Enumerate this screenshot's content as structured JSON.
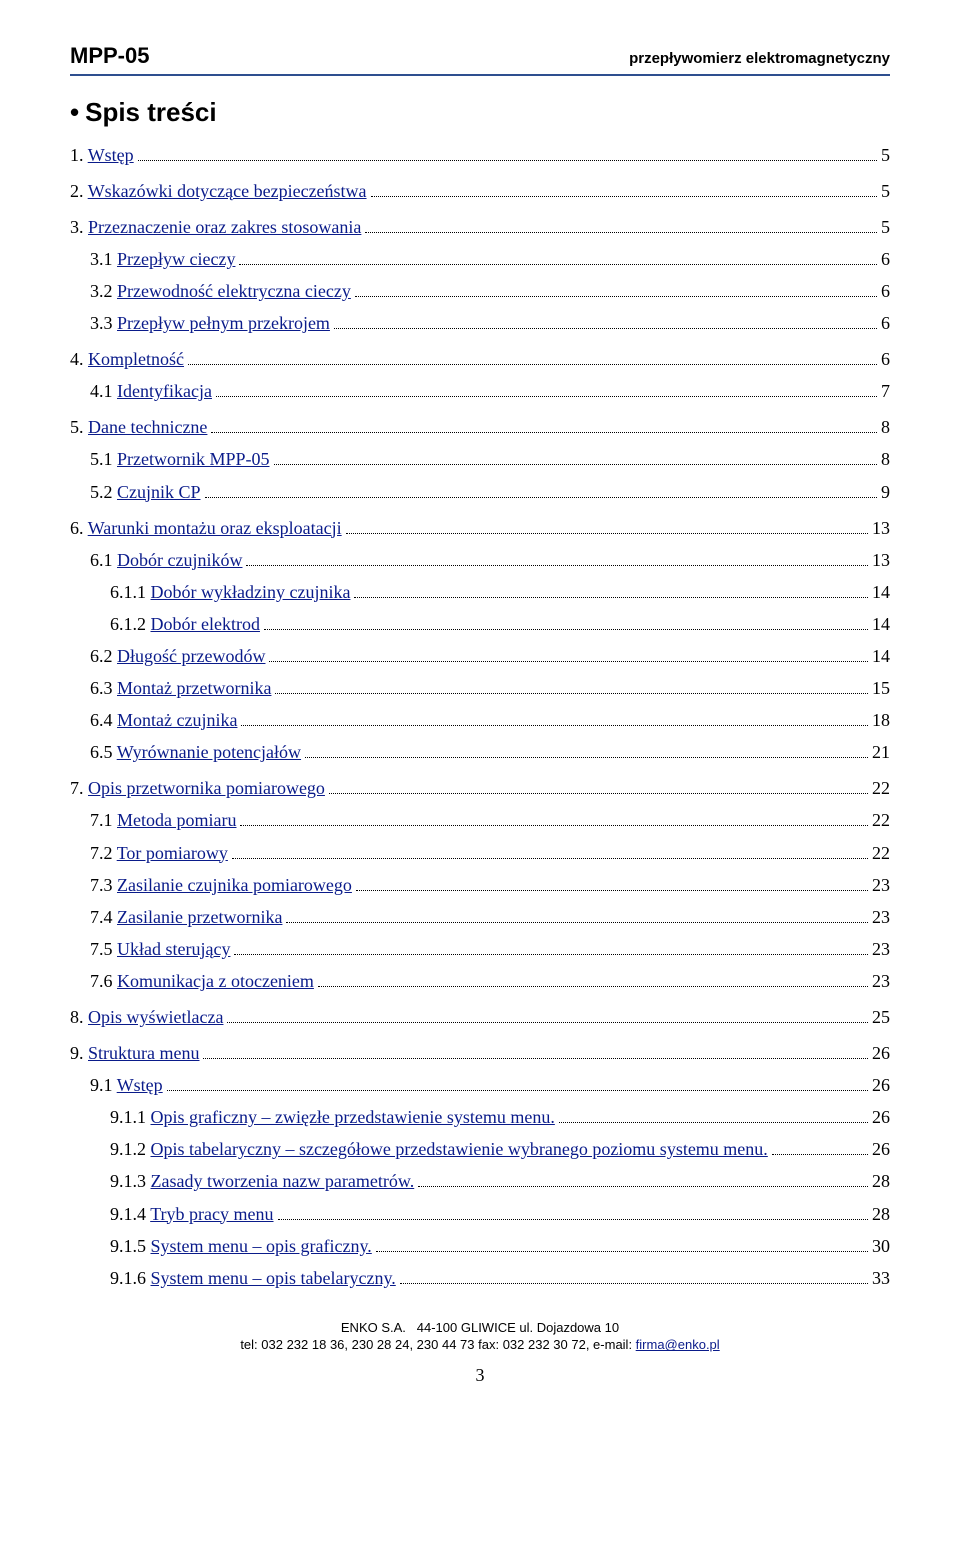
{
  "header": {
    "code": "MPP-05",
    "subtitle": "przepływomierz elektromagnetyczny"
  },
  "toc_heading": "Spis treści",
  "toc": [
    {
      "lvl": 1,
      "num": "1.",
      "txt": "Wstęp",
      "pg": "5",
      "link": true
    },
    {
      "lvl": 1,
      "num": "2.",
      "txt": "Wskazówki dotyczące bezpieczeństwa",
      "pg": "5",
      "link": true
    },
    {
      "lvl": 1,
      "num": "3.",
      "txt": "Przeznaczenie oraz zakres stosowania",
      "pg": "5",
      "link": true
    },
    {
      "lvl": 2,
      "num": "3.1",
      "txt": "Przepływ cieczy",
      "pg": "6",
      "link": true
    },
    {
      "lvl": 2,
      "num": "3.2",
      "txt": "Przewodność elektryczna cieczy",
      "pg": "6",
      "link": true
    },
    {
      "lvl": 2,
      "num": "3.3",
      "txt": "Przepływ pełnym przekrojem",
      "pg": "6",
      "link": true
    },
    {
      "lvl": 1,
      "num": "4.",
      "txt": "Kompletność",
      "pg": "6",
      "link": true
    },
    {
      "lvl": 2,
      "num": "4.1",
      "txt": "Identyfikacja",
      "pg": "7",
      "link": true
    },
    {
      "lvl": 1,
      "num": "5.",
      "txt": "Dane techniczne",
      "pg": "8",
      "link": true
    },
    {
      "lvl": 2,
      "num": "5.1",
      "txt": "Przetwornik  MPP-05",
      "pg": "8",
      "link": true
    },
    {
      "lvl": 2,
      "num": "5.2",
      "txt": "Czujnik  CP",
      "pg": "9",
      "link": true
    },
    {
      "lvl": 1,
      "num": "6.",
      "txt": "Warunki montażu oraz eksploatacji",
      "pg": "13",
      "link": true
    },
    {
      "lvl": 2,
      "num": "6.1",
      "txt": "Dobór czujników",
      "pg": "13",
      "link": true
    },
    {
      "lvl": 3,
      "num": "6.1.1",
      "txt": "Dobór wykładziny czujnika",
      "pg": "14",
      "link": true
    },
    {
      "lvl": 3,
      "num": "6.1.2",
      "txt": "Dobór elektrod",
      "pg": "14",
      "link": true
    },
    {
      "lvl": 2,
      "num": "6.2",
      "txt": "Długość przewodów",
      "pg": "14",
      "link": true
    },
    {
      "lvl": 2,
      "num": "6.3",
      "txt": "Montaż przetwornika",
      "pg": "15",
      "link": true
    },
    {
      "lvl": 2,
      "num": "6.4",
      "txt": "Montaż czujnika",
      "pg": "18",
      "link": true
    },
    {
      "lvl": 2,
      "num": "6.5",
      "txt": "Wyrównanie potencjałów",
      "pg": "21",
      "link": true
    },
    {
      "lvl": 1,
      "num": "7.",
      "txt": "Opis przetwornika pomiarowego",
      "pg": "22",
      "link": true
    },
    {
      "lvl": 2,
      "num": "7.1",
      "txt": "Metoda pomiaru",
      "pg": "22",
      "link": true
    },
    {
      "lvl": 2,
      "num": "7.2",
      "txt": "Tor pomiarowy",
      "pg": "22",
      "link": true
    },
    {
      "lvl": 2,
      "num": "7.3",
      "txt": "Zasilanie czujnika pomiarowego",
      "pg": "23",
      "link": true
    },
    {
      "lvl": 2,
      "num": "7.4",
      "txt": "Zasilanie przetwornika",
      "pg": "23",
      "link": true
    },
    {
      "lvl": 2,
      "num": "7.5",
      "txt": "Układ sterujący",
      "pg": "23",
      "link": true
    },
    {
      "lvl": 2,
      "num": "7.6",
      "txt": "Komunikacja z otoczeniem",
      "pg": "23",
      "link": true
    },
    {
      "lvl": 1,
      "num": "8.",
      "txt": "Opis wyświetlacza",
      "pg": "25",
      "link": true
    },
    {
      "lvl": 1,
      "num": "9.",
      "txt": "Struktura menu",
      "pg": "26",
      "link": true
    },
    {
      "lvl": 2,
      "num": "9.1",
      "txt": "Wstęp",
      "pg": "26",
      "link": true
    },
    {
      "lvl": 3,
      "num": "9.1.1",
      "txt": "Opis graficzny –  zwięzłe przedstawienie systemu menu.",
      "pg": "26",
      "link": true
    },
    {
      "lvl": 3,
      "num": "9.1.2",
      "txt": "Opis tabelaryczny – szczegółowe przedstawienie wybranego poziomu systemu menu.",
      "pg": "26",
      "link": true
    },
    {
      "lvl": 3,
      "num": "9.1.3",
      "txt": "Zasady tworzenia nazw parametrów.",
      "pg": "28",
      "link": true
    },
    {
      "lvl": 3,
      "num": "9.1.4",
      "txt": "Tryb pracy menu",
      "pg": "28",
      "link": true
    },
    {
      "lvl": 3,
      "num": "9.1.5",
      "txt": "System menu – opis graficzny.",
      "pg": "30",
      "link": true
    },
    {
      "lvl": 3,
      "num": "9.1.6",
      "txt": "System menu – opis tabelaryczny.",
      "pg": "33",
      "link": true
    }
  ],
  "footer": {
    "line1_a": "ENKO S.A.",
    "line1_b": "44-100 GLIWICE ul. Dojazdowa 10",
    "line2_a": "tel: 032 232 18 36, 230 28 24, 230 44 73  fax: 032 232 30 72, e-mail: ",
    "email": "firma@enko.pl"
  },
  "page_number": "3",
  "colors": {
    "rule": "#2e4f8f",
    "link": "#0a1b8a",
    "text": "#000000",
    "bg": "#ffffff"
  }
}
